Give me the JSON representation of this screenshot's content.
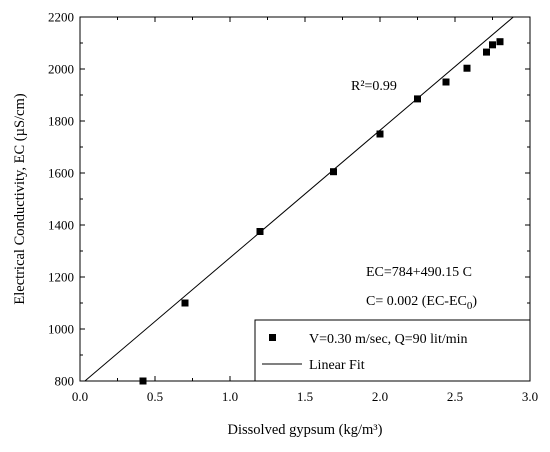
{
  "chart_data": {
    "type": "scatter",
    "xlabel": "Dissolved gypsum (kg/m³)",
    "ylabel": "Electrical Conductivity, EC (µS/cm)",
    "xlim": [
      0.0,
      3.0
    ],
    "ylim": [
      800,
      2200
    ],
    "xticks": [
      0.0,
      0.5,
      1.0,
      1.5,
      2.0,
      2.5,
      3.0
    ],
    "xtick_labels": [
      "0.0",
      "0.5",
      "1.0",
      "1.5",
      "2.0",
      "2.5",
      "3.0"
    ],
    "yticks": [
      800,
      1000,
      1200,
      1400,
      1600,
      1800,
      2000,
      2200
    ],
    "ytick_labels": [
      "800",
      "1000",
      "1200",
      "1400",
      "1600",
      "1800",
      "2000",
      "2200"
    ],
    "grid": false,
    "series": [
      {
        "name": "V=0.30 m/sec, Q=90 lit/min",
        "marker": "square",
        "color": "#000000",
        "x": [
          0.42,
          0.7,
          1.2,
          1.69,
          2.0,
          2.25,
          2.44,
          2.58,
          2.71,
          2.75,
          2.8
        ],
        "y": [
          800,
          1100,
          1375,
          1605,
          1750,
          1885,
          1950,
          2003,
          2065,
          2093,
          2105
        ]
      },
      {
        "name": "Linear Fit",
        "type": "line",
        "color": "#000000",
        "intercept": 784,
        "slope": 490.15
      }
    ],
    "annotations": {
      "r2": "R²=0.99",
      "equation": "EC=784+490.15 C",
      "inverse_equation_main": "C= 0.002 (EC-EC",
      "inverse_equation_sub": "0",
      "inverse_equation_close": ")"
    },
    "legend_position": "bottom-right"
  }
}
